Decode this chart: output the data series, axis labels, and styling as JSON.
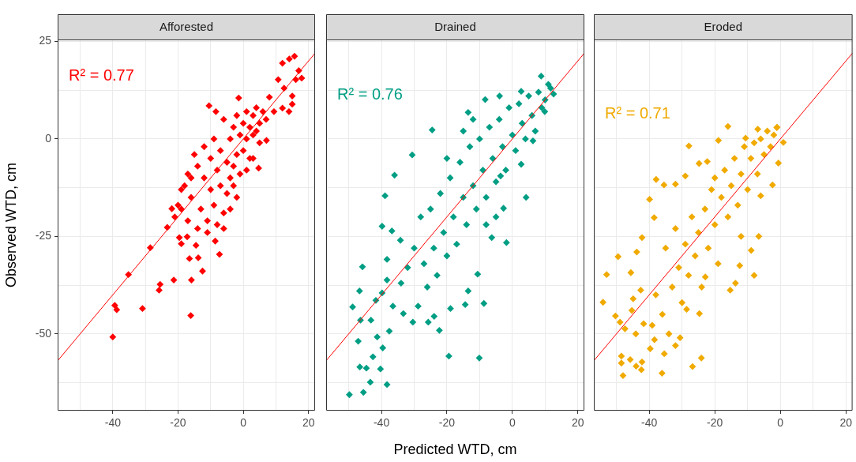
{
  "chart_data": [
    {
      "type": "scatter",
      "title": "Afforested",
      "ylabel": "Observed WTD, cm",
      "annotations": [
        "R² = 0.77"
      ],
      "grid": true,
      "xlim": [
        -56.9,
        22
      ],
      "ylim": [
        -69.7,
        25.5
      ],
      "xticks": [
        {
          "value": -50,
          "label": null
        },
        -40,
        {
          "value": -30,
          "label": null
        },
        -20,
        {
          "value": -10,
          "label": null
        },
        0,
        {
          "value": 10,
          "label": null
        },
        20
      ],
      "yticks": [
        {
          "value": -62.5,
          "label": null
        },
        -50,
        {
          "value": -37.5,
          "label": null
        },
        -25,
        {
          "value": -12.5,
          "label": null
        },
        0,
        {
          "value": 12.5,
          "label": null
        },
        25
      ],
      "series": [
        {
          "type": "scatter",
          "marker": "diamond",
          "color": "#ff0000",
          "x": [
            -40,
            -39.4,
            -38.8,
            -35.2,
            -30.9,
            -28.5,
            -25.8,
            -25.5,
            -23.3,
            -21.9,
            -21.3,
            -19.6,
            -19,
            -17.2,
            -16.5,
            -16.1,
            -15.9,
            -14.5,
            -13.8,
            -12.5,
            -8.6,
            -7.3,
            -10.5,
            -8.4,
            -1.4,
            7.1,
            4.7,
            8,
            9.4,
            12,
            14,
            15,
            15,
            12,
            14.1,
            15.7,
            17,
            17.9,
            16.1,
            10.7,
            12.5,
            -18,
            -17,
            -19,
            -16,
            -15,
            -14,
            -13,
            -12,
            -12,
            -11,
            -10,
            -10,
            -9,
            -9,
            -8,
            -8,
            -7,
            -7,
            -6,
            -6,
            -5,
            -5,
            -4,
            -4,
            -3,
            -3,
            -2,
            -2,
            -1,
            -1,
            0,
            0,
            1,
            1,
            2,
            2,
            3,
            3,
            4,
            4,
            5,
            5,
            6,
            7,
            -20,
            -21,
            -17,
            -14,
            -4,
            -6,
            -11,
            -3,
            -2,
            1,
            3,
            -16,
            -19
          ],
          "values": [
            -50.8,
            -42.7,
            -43.8,
            -34.8,
            -43.5,
            -27.9,
            -38.8,
            -37.3,
            -22.7,
            -17.9,
            -36.2,
            -25.3,
            -26.9,
            -25.1,
            -30.7,
            -45.3,
            -36.2,
            -27.3,
            -30.5,
            -33.9,
            -26.2,
            -29.6,
            8.5,
            7,
            10.5,
            -0.4,
            -7.5,
            10.7,
            7,
            7.9,
            7,
            8.9,
            11,
            19.4,
            20.5,
            21.2,
            17.5,
            15.6,
            15.2,
            15.2,
            13,
            -12,
            -9,
            -13,
            -15,
            -4,
            -7,
            -18,
            -10,
            -2,
            -21,
            -13,
            -5,
            -17,
            0,
            -8,
            -22,
            -12,
            -3,
            -19,
            5,
            -6,
            -14,
            0,
            -10,
            3,
            -7,
            -4,
            6,
            1,
            -9,
            4,
            -3,
            7,
            0,
            3,
            -5,
            6,
            1,
            8,
            2,
            4,
            -1,
            7,
            5,
            -17,
            -20,
            -21,
            -23,
            -18,
            -23,
            -24,
            -12,
            -15,
            -8,
            -5,
            -10,
            -18
          ]
        },
        {
          "type": "line",
          "color": "#ff0000",
          "x": [
            -56.9,
            22
          ],
          "values": [
            -56.9,
            22
          ]
        }
      ]
    },
    {
      "type": "scatter",
      "title": "Drained",
      "xlabel": "Predicted WTD, cm",
      "annotations": [
        "R² = 0.76"
      ],
      "grid": true,
      "tick_labels": "x",
      "xlim": [
        -56.9,
        22
      ],
      "ylim": [
        -69.7,
        25.5
      ],
      "xticks": [
        {
          "value": -50,
          "label": null
        },
        -40,
        {
          "value": -30,
          "label": null
        },
        -20,
        {
          "value": -10,
          "label": null
        },
        0,
        {
          "value": 10,
          "label": null
        },
        20
      ],
      "yticks": [
        {
          "value": -62.5,
          "label": null
        },
        -50,
        {
          "value": -37.5,
          "label": null
        },
        -25,
        {
          "value": -12.5,
          "label": null
        },
        0,
        {
          "value": 12.5,
          "label": null
        },
        25
      ],
      "series": [
        {
          "type": "scatter",
          "marker": "diamond",
          "color": "#009e84",
          "x": [
            -49.8,
            -45.5,
            -43.4,
            -38.3,
            -46.6,
            -44.6,
            -42.6,
            -40.3,
            -47.1,
            -39.6,
            -41.3,
            -37.6,
            -48.8,
            -46.7,
            -45.8,
            -46.4,
            -43.2,
            -41.7,
            -39.8,
            -38.9,
            -39.8,
            -36.8,
            -36,
            -30.6,
            -24.5,
            -13.5,
            -8.3,
            -3.9,
            8.8,
            12.6,
            4.2,
            -1.8,
            -19.4,
            -10.1,
            -8.7,
            -14.4,
            -22.3,
            -25.7,
            -30.4,
            -23.9,
            -18.9,
            -13.5,
            -10.6,
            -28.8,
            -33.3,
            -36.5,
            -38.3,
            -34.2,
            -38.3,
            -6.3,
            -2.7,
            -3.6,
            2.7,
            6.3,
            9.9,
            11.7,
            2.7,
            -30,
            -28,
            -27,
            -25,
            -24,
            -23,
            -22,
            -21,
            -20,
            -19,
            -18,
            -17,
            -16,
            -15,
            -14,
            -13,
            -12,
            -11,
            -10,
            -9,
            -8,
            -7,
            -6,
            -5,
            -4,
            -3,
            -2,
            -1,
            0,
            1,
            2,
            3,
            4,
            5,
            6,
            7,
            8,
            9,
            10,
            11,
            -26,
            -32,
            -34,
            -20,
            -15,
            -12,
            -8,
            -5
          ],
          "values": [
            -65.6,
            -65,
            -62.4,
            -63,
            -58.5,
            -58.8,
            -55.9,
            -59,
            -51.9,
            -53.6,
            -50.8,
            -49.3,
            -43.1,
            -39,
            -32.8,
            -46.5,
            -46.5,
            -41.4,
            -39.5,
            -14.6,
            -22.4,
            -23.6,
            -9.3,
            -4.1,
            2.3,
            6.8,
            10.1,
            11,
            16.1,
            11.5,
            -15,
            -26.6,
            -55.7,
            -56.2,
            -42.2,
            -42.5,
            -49.1,
            -47,
            -47,
            -45.5,
            -43.5,
            -39,
            -34.7,
            -42.9,
            -44.8,
            -42.9,
            -30.9,
            -26,
            -36.2,
            -25.3,
            -17.8,
            -9.5,
            -6.5,
            -0.5,
            7,
            13,
            12.2,
            -28,
            -20,
            -32,
            -18,
            -28,
            -35,
            -14,
            -24,
            -30,
            -10,
            -20,
            -27,
            -6,
            -15,
            -22,
            -2,
            -12,
            -18,
            0,
            -8,
            -15,
            3,
            -5,
            -11,
            5,
            -2,
            -8,
            8,
            1,
            -3,
            9,
            4,
            0,
            11,
            6,
            2,
            12,
            8,
            10,
            14,
            -38,
            -33,
            -37,
            -5,
            2,
            5,
            -22,
            -20
          ]
        },
        {
          "type": "line",
          "color": "#ff0000",
          "x": [
            -56.9,
            22
          ],
          "values": [
            -56.9,
            22
          ]
        }
      ]
    },
    {
      "type": "scatter",
      "title": "Eroded",
      "annotations": [
        "R² = 0.71"
      ],
      "grid": true,
      "tick_labels": "x",
      "xlim": [
        -56.9,
        22
      ],
      "ylim": [
        -69.7,
        25.5
      ],
      "xticks": [
        {
          "value": -50,
          "label": null
        },
        -40,
        {
          "value": -30,
          "label": null
        },
        -20,
        {
          "value": -10,
          "label": null
        },
        0,
        {
          "value": 10,
          "label": null
        },
        20
      ],
      "yticks": [
        {
          "value": -62.5,
          "label": null
        },
        -50,
        {
          "value": -37.5,
          "label": null
        },
        -25,
        {
          "value": -12.5,
          "label": null
        },
        0,
        {
          "value": 12.5,
          "label": null
        },
        25
      ],
      "series": [
        {
          "type": "scatter",
          "marker": "diamond",
          "color": "#f0aa00",
          "x": [
            -54.1,
            -53,
            -49.5,
            -50.3,
            -48.9,
            -47.4,
            -48.5,
            -48.5,
            -48,
            -45.8,
            -44,
            -42.4,
            -42.2,
            -36.1,
            -35.4,
            -26.8,
            -24.1,
            -32,
            -30.6,
            -39.7,
            -38.4,
            -44.1,
            -41.7,
            -39.1,
            -44.9,
            -45.3,
            -42.6,
            -45.6,
            -43.8,
            -42.2,
            -39.9,
            -38.5,
            -37.9,
            -35.5,
            -32,
            -29,
            -27.9,
            -24.8,
            -22.3,
            -18.9,
            -16,
            -8,
            -13.7,
            -15.3,
            -24.7,
            -28.6,
            -6.6,
            -8.9,
            -12.4,
            -22.9,
            -6,
            -2.4,
            -0.6,
            0.9,
            -1.1,
            -6.9,
            -10.6,
            -35,
            -33,
            -32,
            -31,
            -30,
            -29,
            -28,
            -27,
            -26,
            -25,
            -24,
            -23,
            -22,
            -21,
            -20,
            -19,
            -18,
            -17,
            -16,
            -15,
            -14,
            -13,
            -12,
            -11,
            -10,
            -9,
            -8,
            -7,
            -6,
            -5,
            -4,
            -3,
            -2,
            -1,
            -12,
            -20,
            -36,
            -34,
            -38
          ],
          "values": [
            -41.9,
            -34.8,
            -30.2,
            -45.4,
            -47,
            -48.7,
            -55.7,
            -57.5,
            -60.7,
            -56.6,
            -58.3,
            -59.2,
            -57.2,
            -60.1,
            -55.1,
            -58.4,
            -56.2,
            -53,
            -51,
            -53.8,
            -51.5,
            -50,
            -47.4,
            -47.8,
            -41,
            -44,
            -38.8,
            -34.3,
            -29,
            -25.3,
            -15.5,
            -20.2,
            -10.4,
            -11.8,
            -11.6,
            -9.5,
            -1.8,
            -6.3,
            -5.8,
            -0.4,
            3.2,
            -35,
            -37,
            -38.8,
            -44.8,
            -43.7,
            -25,
            -28.6,
            -32.5,
            -35.4,
            -14.6,
            -11.8,
            -6.2,
            -0.9,
            2.9,
            2.5,
            0.2,
            -28,
            -38,
            -23,
            -33,
            -42,
            -27,
            -35,
            -20,
            -30,
            -24,
            -38,
            -18,
            -28,
            -13,
            -22,
            -32,
            -15,
            -8,
            -20,
            -12,
            -5,
            -17,
            -9,
            -2,
            -13,
            -5,
            -1,
            -9,
            0,
            -4,
            2,
            -2,
            1,
            3,
            -25,
            -10,
            -45,
            -50,
            -40
          ]
        },
        {
          "type": "line",
          "color": "#ff0000",
          "x": [
            -56.9,
            22
          ],
          "values": [
            -56.9,
            22
          ]
        }
      ]
    }
  ]
}
